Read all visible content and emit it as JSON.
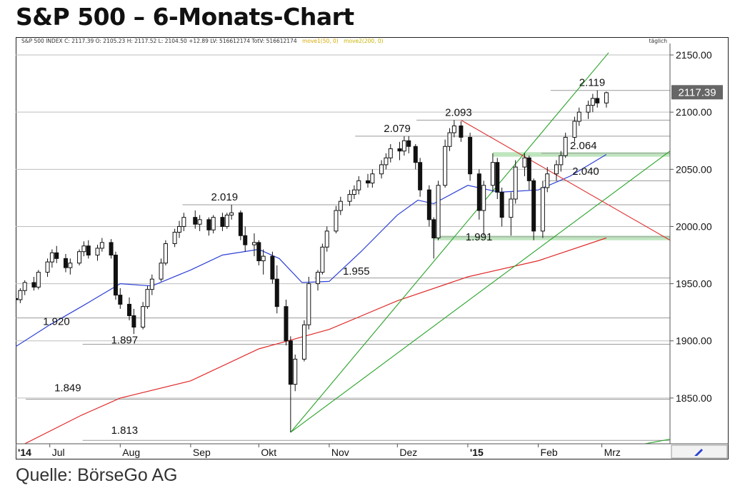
{
  "title": "S&P 500 – 6-Monats-Chart",
  "source": "Quelle: BörseGo AG",
  "info_bar": {
    "quote": "S&P 500 INDEX C: 2117.39 O: 2105.23 H: 2117.52 L: 2104.50 +12.89 LV: 516612174 TotV: 516612174",
    "ma1": "move1(50, 0)",
    "ma2": "move2(200, 0)",
    "interval": "täglich"
  },
  "current_price": "2117.39",
  "colors": {
    "ma50": "#2b3fd6",
    "ma200": "#e02a2a",
    "trend_up": "#29a329",
    "trend_down": "#e03030",
    "support_zone": "#bfe5bf",
    "grid": "#bdbdbd",
    "candle": "#111111",
    "price_tag": "#666666"
  },
  "chart_data": {
    "type": "candlestick",
    "title": "S&P 500 – 6-Monats-Chart",
    "interval": "täglich",
    "ylim": [
      1810,
      2160
    ],
    "y_ticks": [
      "2150.00",
      "2100.00",
      "2050.00",
      "2000.00",
      "1950.00",
      "1900.00",
      "1850.00"
    ],
    "y_tick_values": [
      2150,
      2100,
      2050,
      2000,
      1950,
      1900,
      1850
    ],
    "x_ticks": [
      "'14",
      "Jul",
      "Aug",
      "Sep",
      "Okt",
      "Nov",
      "Dez",
      "'15",
      "Feb",
      "Mrz"
    ],
    "x_tick_dates": [
      "2014-06-16",
      "2014-07-01",
      "2014-08-01",
      "2014-09-01",
      "2014-10-01",
      "2014-11-01",
      "2014-12-01",
      "2015-01-01",
      "2015-02-01",
      "2015-03-01"
    ],
    "xlim": [
      "2014-06-16",
      "2015-03-31"
    ],
    "levels": [
      {
        "label": "2.119",
        "value": 2119
      },
      {
        "label": "2.093",
        "value": 2093
      },
      {
        "label": "2.079",
        "value": 2079
      },
      {
        "label": "2.064",
        "value": 2064
      },
      {
        "label": "2.040",
        "value": 2040
      },
      {
        "label": "2.019",
        "value": 2019
      },
      {
        "label": "1.991",
        "value": 1991
      },
      {
        "label": "1.955",
        "value": 1955
      },
      {
        "label": "1.920",
        "value": 1920
      },
      {
        "label": "1.897",
        "value": 1897
      },
      {
        "label": "1.849",
        "value": 1849
      },
      {
        "label": "1.813",
        "value": 1813
      }
    ],
    "support_zones": [
      {
        "name": "2.064",
        "low": 2061,
        "high": 2065,
        "start": "2015-01-12"
      },
      {
        "name": "1.991",
        "low": 1988,
        "high": 1992,
        "start": "2014-12-17"
      }
    ],
    "trendlines": [
      {
        "name": "steep-up",
        "from": [
          "2014-10-15",
          1820
        ],
        "to": [
          "2015-03-04",
          2152
        ]
      },
      {
        "name": "shallow-up",
        "from": [
          "2014-10-15",
          1820
        ],
        "to": [
          "2015-03-31",
          2066
        ]
      },
      {
        "name": "lower-up",
        "from": [
          "2015-03-09",
          1806
        ],
        "to": [
          "2015-03-31",
          1814
        ]
      },
      {
        "name": "down",
        "from": [
          "2014-12-29",
          2093
        ],
        "to": [
          "2015-03-31",
          1988
        ]
      }
    ],
    "series": [
      {
        "name": "move1(50, 0)",
        "type": "line",
        "values": [
          [
            "2014-06-16",
            1895
          ],
          [
            "2014-07-01",
            1914
          ],
          [
            "2014-07-15",
            1930
          ],
          [
            "2014-08-01",
            1950
          ],
          [
            "2014-08-15",
            1948
          ],
          [
            "2014-09-01",
            1962
          ],
          [
            "2014-09-15",
            1975
          ],
          [
            "2014-10-01",
            1980
          ],
          [
            "2014-10-10",
            1972
          ],
          [
            "2014-10-20",
            1951
          ],
          [
            "2014-11-01",
            1952
          ],
          [
            "2014-11-15",
            1978
          ],
          [
            "2014-12-01",
            2010
          ],
          [
            "2014-12-10",
            2023
          ],
          [
            "2014-12-17",
            2020
          ],
          [
            "2015-01-01",
            2036
          ],
          [
            "2015-01-15",
            2030
          ],
          [
            "2015-02-01",
            2032
          ],
          [
            "2015-02-15",
            2044
          ],
          [
            "2015-03-03",
            2063
          ]
        ]
      },
      {
        "name": "move2(200, 0)",
        "type": "line",
        "values": [
          [
            "2014-06-16",
            1806
          ],
          [
            "2014-07-15",
            1835
          ],
          [
            "2014-08-01",
            1850
          ],
          [
            "2014-09-01",
            1865
          ],
          [
            "2014-10-01",
            1893
          ],
          [
            "2014-11-01",
            1910
          ],
          [
            "2014-12-01",
            1935
          ],
          [
            "2015-01-01",
            1956
          ],
          [
            "2015-02-01",
            1970
          ],
          [
            "2015-03-03",
            1990
          ]
        ]
      },
      {
        "name": "S&P 500 INDEX",
        "type": "ohlc",
        "values": [
          [
            "2014-06-16",
            1937,
            1942,
            1932,
            1936
          ],
          [
            "2014-06-18",
            1936,
            1946,
            1933,
            1944
          ],
          [
            "2014-06-20",
            1944,
            1953,
            1940,
            1951
          ],
          [
            "2014-06-24",
            1951,
            1956,
            1944,
            1947
          ],
          [
            "2014-06-26",
            1947,
            1962,
            1945,
            1960
          ],
          [
            "2014-06-30",
            1960,
            1972,
            1956,
            1969
          ],
          [
            "2014-07-02",
            1969,
            1980,
            1964,
            1977
          ],
          [
            "2014-07-04",
            1977,
            1983,
            1968,
            1972
          ],
          [
            "2014-07-08",
            1972,
            1976,
            1960,
            1964
          ],
          [
            "2014-07-10",
            1964,
            1972,
            1958,
            1968
          ],
          [
            "2014-07-14",
            1968,
            1980,
            1966,
            1978
          ],
          [
            "2014-07-16",
            1978,
            1987,
            1974,
            1983
          ],
          [
            "2014-07-18",
            1983,
            1988,
            1972,
            1975
          ],
          [
            "2014-07-22",
            1975,
            1984,
            1970,
            1981
          ],
          [
            "2014-07-24",
            1981,
            1990,
            1978,
            1986
          ],
          [
            "2014-07-28",
            1986,
            1989,
            1972,
            1975
          ],
          [
            "2014-07-30",
            1975,
            1978,
            1936,
            1940
          ],
          [
            "2014-08-01",
            1940,
            1946,
            1928,
            1932
          ],
          [
            "2014-08-05",
            1932,
            1938,
            1918,
            1922
          ],
          [
            "2014-08-07",
            1922,
            1928,
            1906,
            1912
          ],
          [
            "2014-08-11",
            1912,
            1934,
            1910,
            1930
          ],
          [
            "2014-08-13",
            1930,
            1948,
            1928,
            1945
          ],
          [
            "2014-08-15",
            1945,
            1958,
            1940,
            1954
          ],
          [
            "2014-08-19",
            1954,
            1972,
            1952,
            1968
          ],
          [
            "2014-08-21",
            1968,
            1988,
            1966,
            1985
          ],
          [
            "2014-08-25",
            1985,
            1998,
            1982,
            1995
          ],
          [
            "2014-08-27",
            1995,
            2005,
            1990,
            2000
          ],
          [
            "2014-08-29",
            2000,
            2012,
            1996,
            2008
          ],
          [
            "2014-09-03",
            2008,
            2014,
            1998,
            2002
          ],
          [
            "2014-09-05",
            2002,
            2010,
            1996,
            2006
          ],
          [
            "2014-09-09",
            2006,
            2008,
            1992,
            1997
          ],
          [
            "2014-09-11",
            1997,
            2010,
            1994,
            2008
          ],
          [
            "2014-09-15",
            2008,
            2012,
            1996,
            2000
          ],
          [
            "2014-09-17",
            2000,
            2012,
            1998,
            2010
          ],
          [
            "2014-09-19",
            2010,
            2019,
            2006,
            2012
          ],
          [
            "2014-09-23",
            2012,
            2014,
            1988,
            1992
          ],
          [
            "2014-09-25",
            1992,
            2000,
            1978,
            1984
          ],
          [
            "2014-09-29",
            1984,
            1994,
            1974,
            1986
          ],
          [
            "2014-10-01",
            1986,
            1988,
            1966,
            1970
          ],
          [
            "2014-10-03",
            1970,
            1980,
            1958,
            1974
          ],
          [
            "2014-10-07",
            1974,
            1978,
            1950,
            1954
          ],
          [
            "2014-10-09",
            1954,
            1966,
            1924,
            1930
          ],
          [
            "2014-10-13",
            1930,
            1936,
            1896,
            1900
          ],
          [
            "2014-10-15",
            1900,
            1904,
            1820,
            1862
          ],
          [
            "2014-10-17",
            1862,
            1888,
            1856,
            1884
          ],
          [
            "2014-10-21",
            1884,
            1918,
            1882,
            1914
          ],
          [
            "2014-10-23",
            1914,
            1956,
            1910,
            1950
          ],
          [
            "2014-10-27",
            1950,
            1962,
            1944,
            1960
          ],
          [
            "2014-10-29",
            1960,
            1985,
            1958,
            1982
          ],
          [
            "2014-10-31",
            1982,
            2000,
            1978,
            1996
          ],
          [
            "2014-11-04",
            1996,
            2018,
            1994,
            2014
          ],
          [
            "2014-11-06",
            2014,
            2026,
            2010,
            2022
          ],
          [
            "2014-11-10",
            2022,
            2032,
            2018,
            2028
          ],
          [
            "2014-11-12",
            2028,
            2036,
            2024,
            2032
          ],
          [
            "2014-11-14",
            2032,
            2044,
            2028,
            2040
          ],
          [
            "2014-11-18",
            2040,
            2046,
            2034,
            2038
          ],
          [
            "2014-11-20",
            2038,
            2050,
            2034,
            2046
          ],
          [
            "2014-11-24",
            2046,
            2058,
            2042,
            2054
          ],
          [
            "2014-11-26",
            2054,
            2064,
            2050,
            2060
          ],
          [
            "2014-11-28",
            2060,
            2072,
            2056,
            2068
          ],
          [
            "2014-12-02",
            2068,
            2074,
            2058,
            2066
          ],
          [
            "2014-12-04",
            2066,
            2079,
            2062,
            2075
          ],
          [
            "2014-12-06",
            2075,
            2079,
            2064,
            2070
          ],
          [
            "2014-12-09",
            2070,
            2072,
            2050,
            2056
          ],
          [
            "2014-12-11",
            2056,
            2060,
            2026,
            2032
          ],
          [
            "2014-12-15",
            2032,
            2036,
            2000,
            2006
          ],
          [
            "2014-12-17",
            2006,
            2008,
            1972,
            1990
          ],
          [
            "2014-12-19",
            1990,
            2040,
            1988,
            2036
          ],
          [
            "2014-12-22",
            2036,
            2076,
            2034,
            2070
          ],
          [
            "2014-12-24",
            2070,
            2086,
            2066,
            2082
          ],
          [
            "2014-12-26",
            2082,
            2093,
            2078,
            2088
          ],
          [
            "2014-12-29",
            2088,
            2092,
            2074,
            2078
          ],
          [
            "2015-01-02",
            2078,
            2082,
            2040,
            2046
          ],
          [
            "2015-01-06",
            2046,
            2050,
            2006,
            2014
          ],
          [
            "2015-01-08",
            2014,
            2040,
            1992,
            2036
          ],
          [
            "2015-01-12",
            2036,
            2064,
            2030,
            2056
          ],
          [
            "2015-01-14",
            2056,
            2060,
            2024,
            2030
          ],
          [
            "2015-01-16",
            2030,
            2034,
            2000,
            2008
          ],
          [
            "2015-01-20",
            2008,
            2030,
            1992,
            2024
          ],
          [
            "2015-01-22",
            2024,
            2058,
            2020,
            2052
          ],
          [
            "2015-01-26",
            2052,
            2064,
            2044,
            2060
          ],
          [
            "2015-01-28",
            2060,
            2062,
            2032,
            2040
          ],
          [
            "2015-01-30",
            2040,
            2042,
            1988,
            1996
          ],
          [
            "2015-02-03",
            1996,
            2040,
            1990,
            2034
          ],
          [
            "2015-02-05",
            2034,
            2052,
            2030,
            2046
          ],
          [
            "2015-02-09",
            2046,
            2058,
            2040,
            2054
          ],
          [
            "2015-02-11",
            2054,
            2066,
            2048,
            2062
          ],
          [
            "2015-02-13",
            2062,
            2082,
            2060,
            2078
          ],
          [
            "2015-02-17",
            2078,
            2096,
            2074,
            2092
          ],
          [
            "2015-02-19",
            2092,
            2104,
            2088,
            2100
          ],
          [
            "2015-02-23",
            2100,
            2110,
            2094,
            2106
          ],
          [
            "2015-02-25",
            2106,
            2116,
            2100,
            2112
          ],
          [
            "2015-02-27",
            2112,
            2119,
            2104,
            2108
          ],
          [
            "2015-03-03",
            2108,
            2118,
            2104,
            2117
          ]
        ]
      }
    ]
  }
}
